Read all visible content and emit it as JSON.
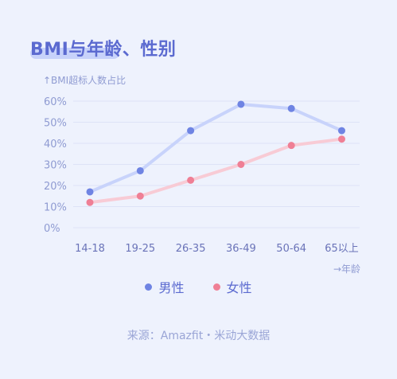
{
  "title": "BMI与年龄、性别",
  "ylabel": "↑BMI超标人数占比",
  "xunit": "→年龄",
  "source": "来源：Amazfit・米动大数据",
  "colors": {
    "male": "#6f84e3",
    "female": "#ef7f95",
    "male_line": "#c8d3fb",
    "female_line": "#f8cbd5"
  },
  "chart_data": {
    "type": "line",
    "categories": [
      "14-18",
      "19-25",
      "26-35",
      "36-49",
      "50-64",
      "65以上"
    ],
    "yticks": [
      "0%",
      "10%",
      "20%",
      "30%",
      "40%",
      "50%",
      "60%"
    ],
    "ylim": [
      0,
      60
    ],
    "grid": true,
    "legend_position": "bottom",
    "series": [
      {
        "name": "男性",
        "values": [
          17,
          27,
          46,
          58.5,
          56.5,
          46
        ]
      },
      {
        "name": "女性",
        "values": [
          12,
          15,
          22.5,
          30,
          39,
          42
        ]
      }
    ]
  }
}
